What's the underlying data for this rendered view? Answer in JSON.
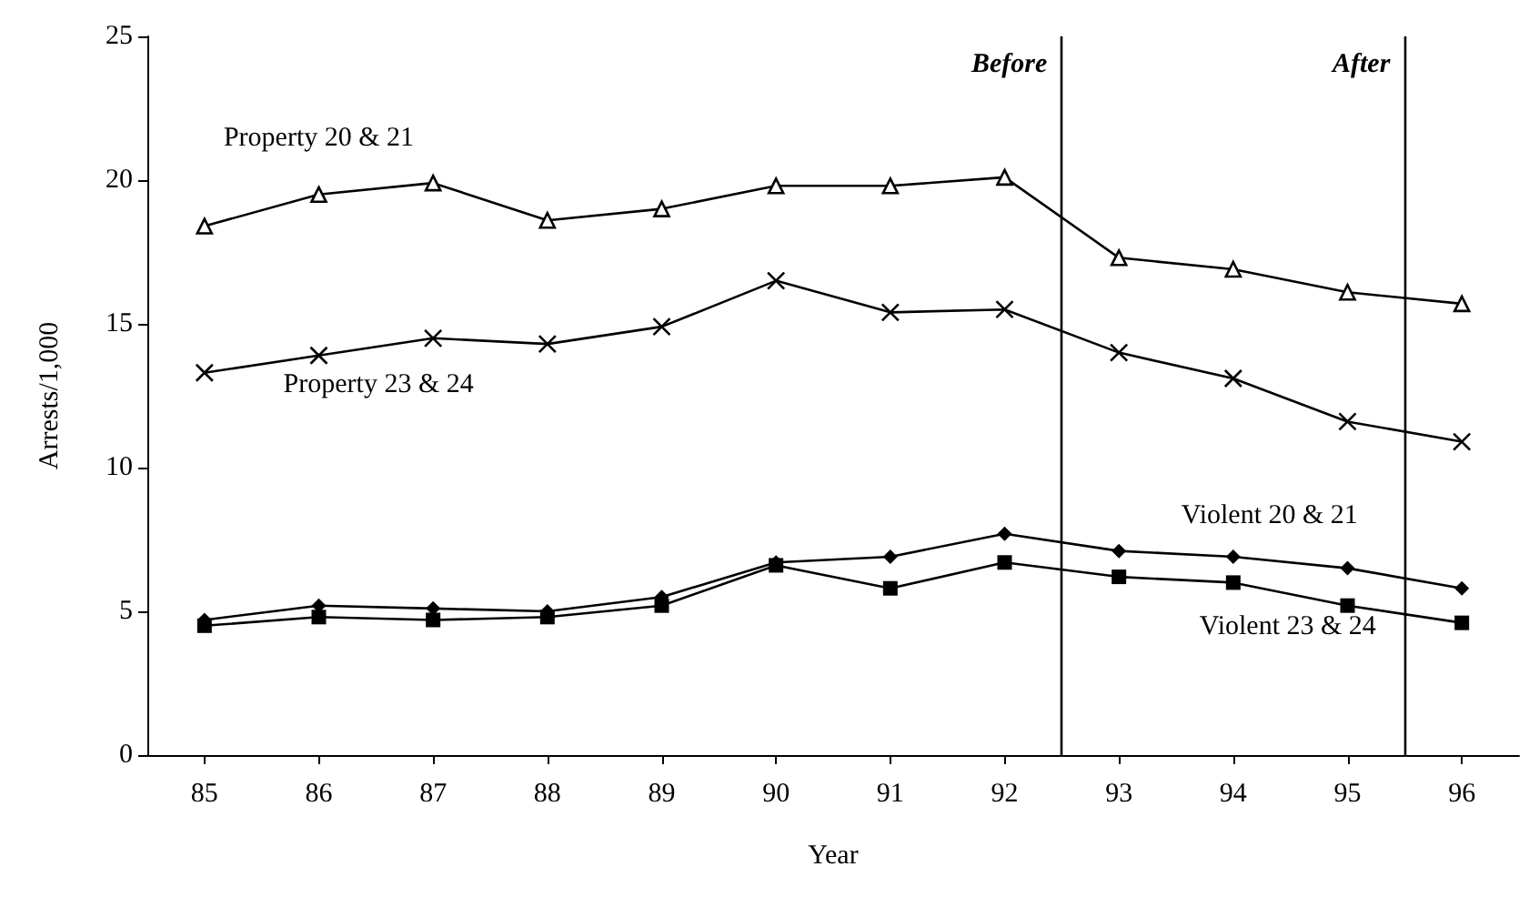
{
  "chart_data": {
    "type": "line",
    "xlabel": "Year",
    "ylabel": "Arrests/1,000",
    "x": [
      85,
      86,
      87,
      88,
      89,
      90,
      91,
      92,
      93,
      94,
      95,
      96
    ],
    "xlim": [
      84.5,
      96.5
    ],
    "xticks": [
      85,
      86,
      87,
      88,
      89,
      90,
      91,
      92,
      93,
      94,
      95,
      96
    ],
    "ylim": [
      0,
      25
    ],
    "yticks": [
      0,
      5,
      10,
      15,
      20,
      25
    ],
    "grid": false,
    "legend": false,
    "series": [
      {
        "name": "Property 20 & 21",
        "color": "#000000",
        "marker": "triangle",
        "values": [
          18.4,
          19.5,
          19.9,
          18.6,
          19.0,
          19.8,
          19.8,
          20.1,
          17.3,
          16.9,
          16.1,
          15.7
        ]
      },
      {
        "name": "Property 23 & 24",
        "color": "#000000",
        "marker": "cross",
        "values": [
          13.3,
          13.9,
          14.5,
          14.3,
          14.9,
          16.5,
          15.4,
          15.5,
          14.0,
          13.1,
          11.6,
          10.9
        ]
      },
      {
        "name": "Violent 20 & 21",
        "color": "#000000",
        "marker": "diamond",
        "values": [
          4.7,
          5.2,
          5.1,
          5.0,
          5.5,
          6.7,
          6.9,
          7.7,
          7.1,
          6.9,
          6.5,
          5.8
        ]
      },
      {
        "name": "Violent 23 & 24",
        "color": "#000000",
        "marker": "square",
        "values": [
          4.5,
          4.8,
          4.7,
          4.8,
          5.2,
          6.6,
          5.8,
          6.7,
          6.2,
          6.0,
          5.2,
          4.6
        ]
      }
    ],
    "ref_lines": [
      {
        "axis": "x",
        "value": 92.5,
        "label": "Before"
      },
      {
        "axis": "x",
        "value": 95.5,
        "label": "After"
      }
    ]
  }
}
